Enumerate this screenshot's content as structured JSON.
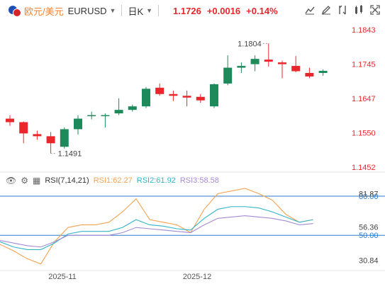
{
  "header": {
    "pair_name": "欧元/美元",
    "pair_code": "EURUSD",
    "period": "日K",
    "price": "1.1726",
    "change": "+0.0016",
    "change_pct": "+0.14%",
    "icons": [
      "line-chart-icon",
      "pencil-icon",
      "indicator-icon",
      "compare-icon",
      "fullscreen-icon"
    ],
    "accent_color": "#e8262c"
  },
  "rsi": {
    "label": "RSI(7,14,21)",
    "rsi1_label": "RSI1:62.27",
    "rsi2_label": "RSI2:61.92",
    "rsi3_label": "RSI3:58.58",
    "colors": {
      "rsi1": "#f4a251",
      "rsi2": "#33b4c8",
      "rsi3": "#a38ad4"
    }
  },
  "chart_data": {
    "type": "candlestick",
    "price_axis_labels": [
      "1.1843",
      "1.1745",
      "1.1647",
      "1.1550",
      "1.1452"
    ],
    "price_axis_values": [
      1.1843,
      1.1745,
      1.1647,
      1.155,
      1.1452
    ],
    "ylim": [
      1.144,
      1.1855
    ],
    "high_annotation": "1.1804",
    "low_annotation": "1.1491",
    "x_tick_labels": [
      "2025-11",
      "2025-12"
    ],
    "up_color": "#1c8a5a",
    "down_color": "#e8262c",
    "candles": [
      {
        "o": 1.159,
        "h": 1.16,
        "l": 1.157,
        "c": 1.158
      },
      {
        "o": 1.158,
        "h": 1.1582,
        "l": 1.152,
        "c": 1.1548
      },
      {
        "o": 1.1546,
        "h": 1.1556,
        "l": 1.153,
        "c": 1.154
      },
      {
        "o": 1.154,
        "h": 1.1552,
        "l": 1.1491,
        "c": 1.152
      },
      {
        "o": 1.151,
        "h": 1.1565,
        "l": 1.1505,
        "c": 1.156
      },
      {
        "o": 1.156,
        "h": 1.16,
        "l": 1.1545,
        "c": 1.159
      },
      {
        "o": 1.1598,
        "h": 1.161,
        "l": 1.1588,
        "c": 1.16
      },
      {
        "o": 1.16,
        "h": 1.1605,
        "l": 1.1565,
        "c": 1.16
      },
      {
        "o": 1.1605,
        "h": 1.1648,
        "l": 1.16,
        "c": 1.1615
      },
      {
        "o": 1.1615,
        "h": 1.163,
        "l": 1.161,
        "c": 1.1625
      },
      {
        "o": 1.1625,
        "h": 1.168,
        "l": 1.162,
        "c": 1.1675
      },
      {
        "o": 1.1678,
        "h": 1.169,
        "l": 1.1655,
        "c": 1.166
      },
      {
        "o": 1.166,
        "h": 1.167,
        "l": 1.164,
        "c": 1.1655
      },
      {
        "o": 1.1655,
        "h": 1.167,
        "l": 1.1625,
        "c": 1.165
      },
      {
        "o": 1.1652,
        "h": 1.166,
        "l": 1.1635,
        "c": 1.1642
      },
      {
        "o": 1.1625,
        "h": 1.169,
        "l": 1.162,
        "c": 1.1688
      },
      {
        "o": 1.169,
        "h": 1.177,
        "l": 1.1685,
        "c": 1.1735
      },
      {
        "o": 1.1735,
        "h": 1.175,
        "l": 1.172,
        "c": 1.174
      },
      {
        "o": 1.1745,
        "h": 1.177,
        "l": 1.1725,
        "c": 1.176
      },
      {
        "o": 1.1758,
        "h": 1.1804,
        "l": 1.1738,
        "c": 1.1752
      },
      {
        "o": 1.175,
        "h": 1.1755,
        "l": 1.1705,
        "c": 1.1745
      },
      {
        "o": 1.174,
        "h": 1.1768,
        "l": 1.1722,
        "c": 1.1725
      },
      {
        "o": 1.172,
        "h": 1.1735,
        "l": 1.1705,
        "c": 1.171
      },
      {
        "o": 1.172,
        "h": 1.173,
        "l": 1.1712,
        "c": 1.1726
      }
    ],
    "rsi_axis_labels": [
      "80.00",
      "81.87",
      "56.36",
      "50.00",
      "30.84"
    ],
    "rsi_axis_values": [
      80.0,
      81.87,
      56.36,
      50.0,
      30.84
    ],
    "rsi_ylim": [
      24,
      86
    ],
    "rsi_ref_lines": [
      80,
      50
    ],
    "rsi1": [
      43,
      38,
      32,
      28,
      45,
      56,
      58,
      58,
      60,
      68,
      78,
      62,
      60,
      58,
      52,
      70,
      82,
      84,
      86,
      82,
      77,
      66,
      60,
      62
    ],
    "rsi2": [
      45,
      41,
      39,
      39,
      44,
      51,
      53,
      53,
      53,
      56,
      62,
      58,
      57,
      55,
      54,
      63,
      70,
      72,
      72,
      71,
      68,
      64,
      60,
      62
    ],
    "rsi3": [
      46,
      44,
      42,
      41,
      45,
      50,
      50,
      50,
      50,
      52,
      56,
      55,
      54,
      53,
      52,
      58,
      63,
      64,
      65,
      64,
      63,
      61,
      58,
      59
    ]
  }
}
